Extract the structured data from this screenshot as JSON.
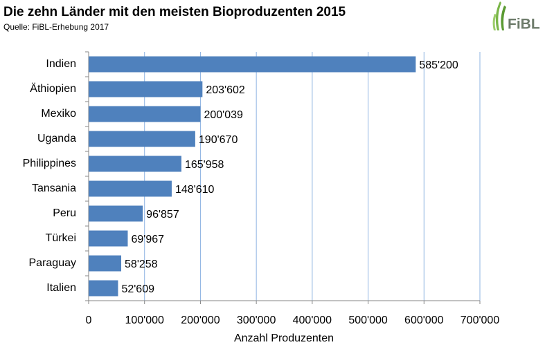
{
  "chart_data": {
    "type": "bar",
    "orientation": "horizontal",
    "title": "Die zehn Länder mit den meisten Bioproduzenten 2015",
    "subtitle": "Quelle: FiBL-Erhebung 2017",
    "logo": "FiBL",
    "x_label": "Anzahl Produzenten",
    "categories": [
      "Indien",
      "Äthiopien",
      "Mexiko",
      "Uganda",
      "Philippines",
      "Tansania",
      "Peru",
      "Türkei",
      "Paraguay",
      "Italien"
    ],
    "values": [
      585200,
      203602,
      200039,
      190670,
      165958,
      148610,
      96857,
      69967,
      58258,
      52609
    ],
    "value_labels": [
      "585'200",
      "203'602",
      "200'039",
      "190'670",
      "165'958",
      "148'610",
      "96'857",
      "69'967",
      "58'258",
      "52'609"
    ],
    "color": "#4f81bd",
    "xlim": [
      0,
      700000
    ],
    "xticks": [
      0,
      {
        "value": 100000,
        "label": "100'000"
      },
      {
        "value": 200000,
        "label": "200'000"
      },
      {
        "value": 300000,
        "label": "300'000"
      },
      {
        "value": 400000,
        "label": "400'000"
      },
      {
        "value": 500000,
        "label": "500'000"
      },
      {
        "value": 600000,
        "label": "600'000"
      },
      {
        "value": 700000,
        "label": "700'000"
      }
    ],
    "grid": true
  }
}
